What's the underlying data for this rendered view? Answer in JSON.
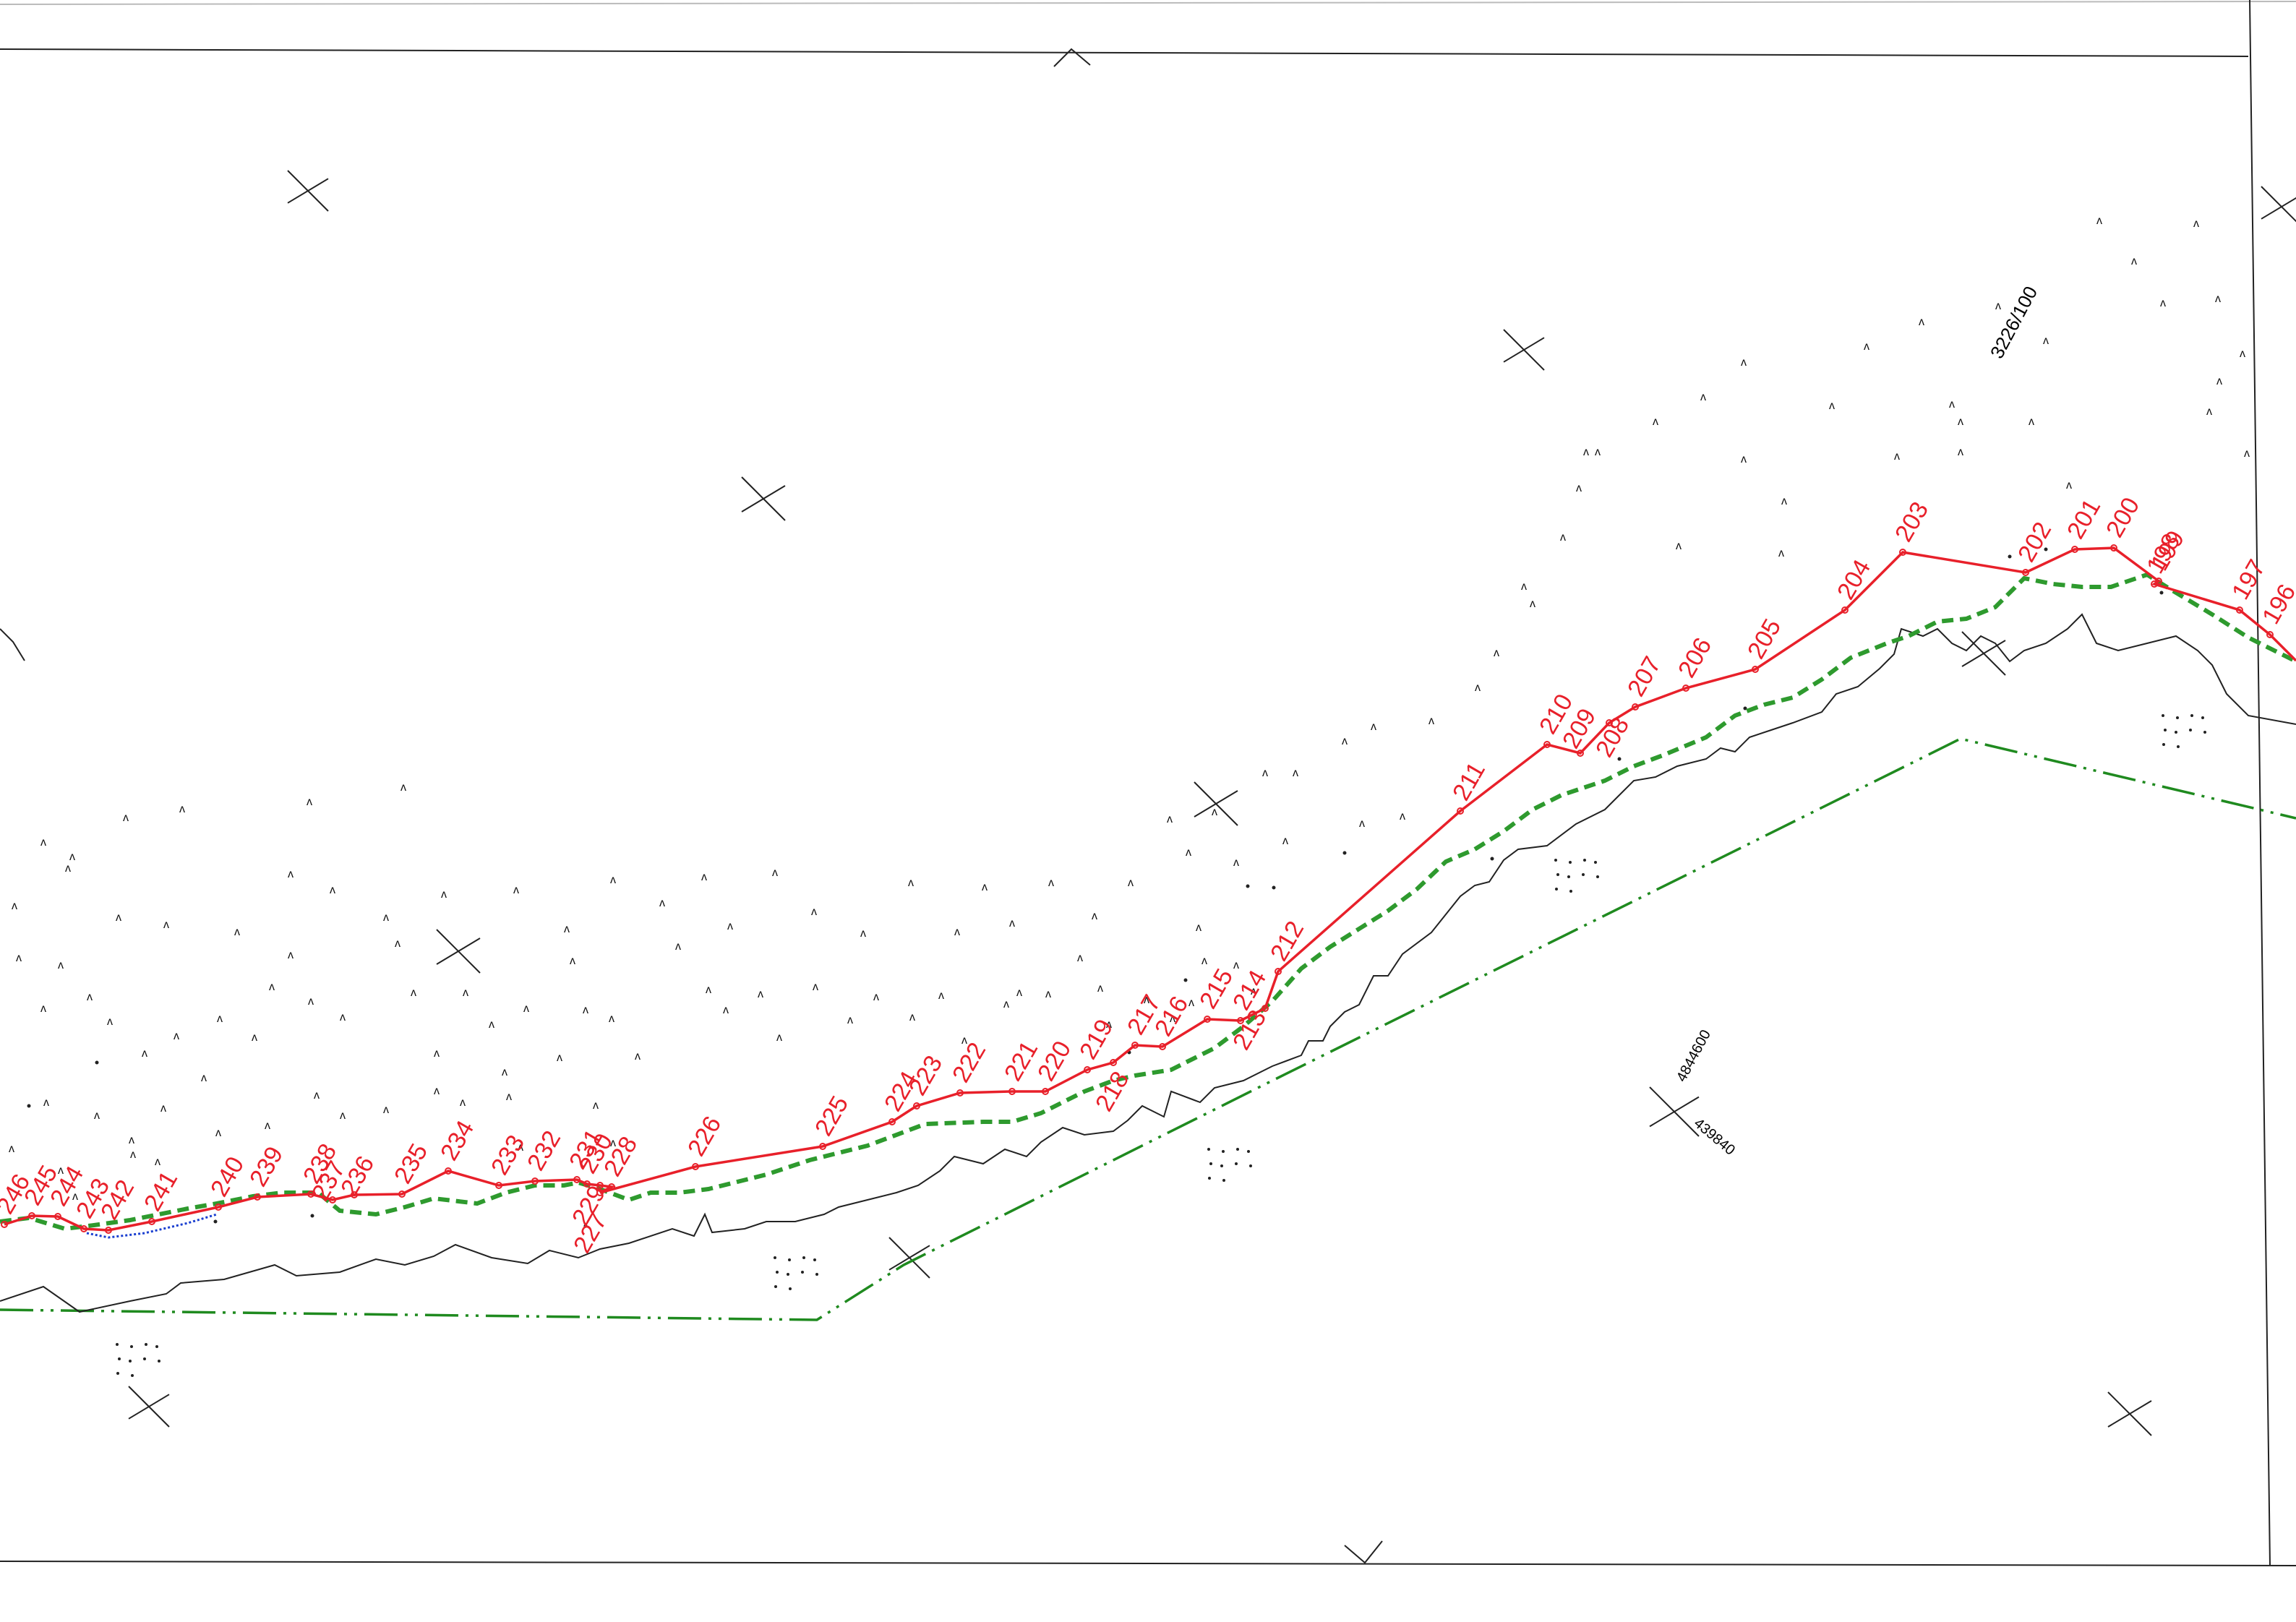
{
  "map": {
    "type": "cadastral boundary survey drawing",
    "colors": {
      "boundary_line": "#e8202a",
      "boundary_points": "#e8202a",
      "dashed_green_line": "#2e9a2e",
      "dash_dot_green_line": "#1f8a1f",
      "terrain_line": "#222222",
      "blue_dotted_line": "#1a3fd0",
      "frame": "#222222"
    },
    "parcel_label": "3226/100",
    "coordinate_labels": [
      "4844600",
      "439840"
    ],
    "point_labels": [
      "246",
      "245",
      "244",
      "243",
      "242",
      "241",
      "240",
      "239",
      "238",
      "237",
      "236",
      "235",
      "234",
      "233",
      "232",
      "231",
      "230",
      "229",
      "228",
      "227",
      "226",
      "225",
      "224",
      "223",
      "222",
      "221",
      "220",
      "219",
      "218",
      "217",
      "216",
      "215",
      "214",
      "213",
      "212",
      "211",
      "210",
      "209",
      "208",
      "207",
      "206",
      "205",
      "204",
      "203",
      "202",
      "201",
      "200",
      "199",
      "198",
      "197",
      "196"
    ],
    "vegetation_symbol": "ʌ",
    "grid_cross_icon": "grid-cross-icon"
  }
}
